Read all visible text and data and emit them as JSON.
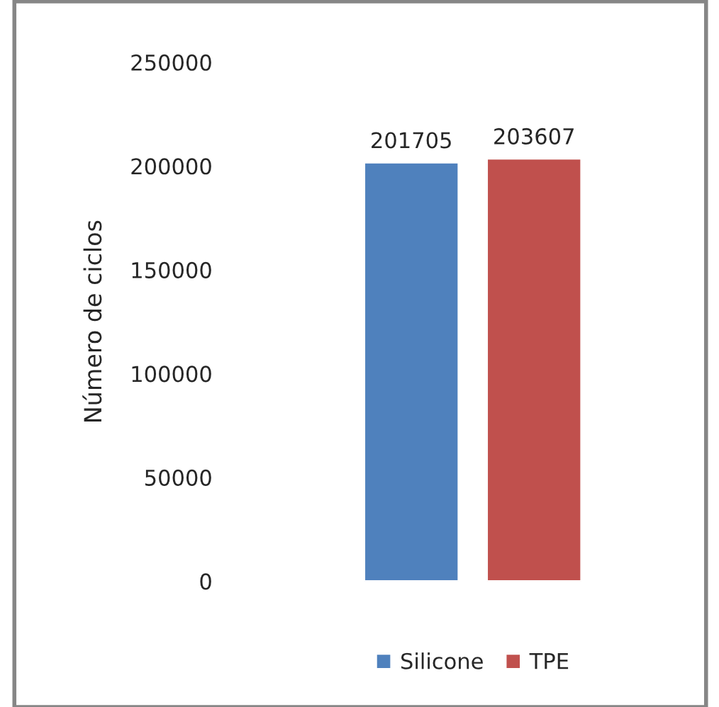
{
  "chart_data": {
    "type": "bar",
    "ylabel": "Número de ciclos",
    "categories": [
      null
    ],
    "series": [
      {
        "name": "Silicone",
        "color": "#4f81bd",
        "values": [
          201705
        ]
      },
      {
        "name": "TPE",
        "color": "#c0504d",
        "values": [
          203607
        ]
      }
    ],
    "ylim": [
      0,
      250000
    ],
    "yticks": [
      0,
      50000,
      100000,
      150000,
      200000,
      250000
    ],
    "data_labels": true,
    "legend": "bottom",
    "grid": false,
    "tick_labels": "y"
  }
}
